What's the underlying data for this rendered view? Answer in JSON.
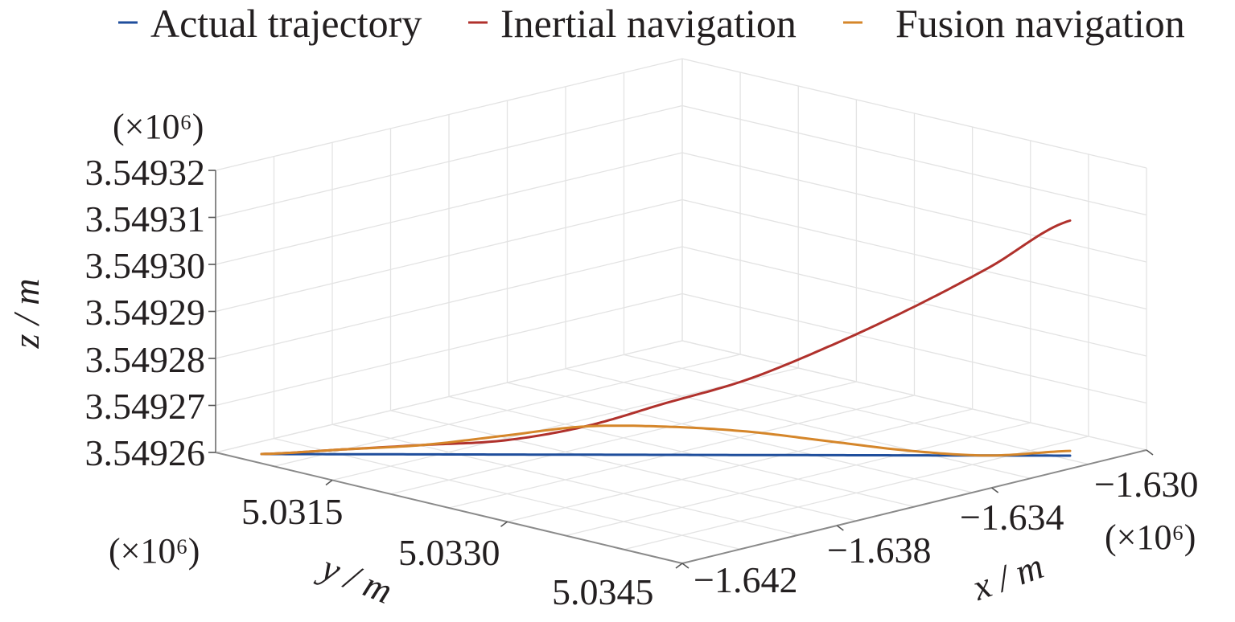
{
  "chart_data": {
    "type": "line",
    "projection": "3d",
    "title": "",
    "legend": {
      "placement": "top",
      "entries": [
        "Actual trajectory",
        "Inertial navigation",
        "Fusion navigation"
      ]
    },
    "axes": {
      "x": {
        "label": "x / m",
        "scale_label": "(×10⁶)",
        "range": [
          -1.642,
          -1.63
        ],
        "ticks": [
          -1.642,
          -1.638,
          -1.634,
          -1.63
        ],
        "tick_labels": [
          "−1.642",
          "−1.638",
          "−1.634",
          "−1.630"
        ]
      },
      "y": {
        "label": "y / m",
        "scale_label": "(×10⁶)",
        "range": [
          5.0305,
          5.0345
        ],
        "ticks": [
          5.0315,
          5.033,
          5.0345
        ],
        "tick_labels": [
          "5.0315",
          "5.0330",
          "5.0345"
        ]
      },
      "z": {
        "label": "z / m",
        "scale_label": "(×10⁶)",
        "range": [
          3.54926,
          3.54932
        ],
        "ticks": [
          3.54926,
          3.54927,
          3.54928,
          3.54929,
          3.5493,
          3.54931,
          3.54932
        ],
        "tick_labels": [
          "3.54926",
          "3.54927",
          "3.54928",
          "3.54929",
          "3.54930",
          "3.54931",
          "3.54932"
        ]
      }
    },
    "grid": true,
    "series": [
      {
        "name": "Actual trajectory",
        "color": "#1f4e9c",
        "t": [
          0,
          0.1,
          0.2,
          0.3,
          0.4,
          0.5,
          0.6,
          0.7,
          0.8,
          0.9,
          1
        ],
        "z": [
          3.54926,
          3.54926,
          3.54926,
          3.54926,
          3.54926,
          3.54926,
          3.54926,
          3.54926,
          3.54926,
          3.54926,
          3.54926
        ]
      },
      {
        "name": "Inertial navigation",
        "color": "#b0312c",
        "t": [
          0,
          0.1,
          0.2,
          0.3,
          0.4,
          0.5,
          0.6,
          0.7,
          0.8,
          0.9,
          1
        ],
        "z": [
          3.54926,
          3.549261,
          3.549262,
          3.549263,
          3.549266,
          3.549271,
          3.549276,
          3.549283,
          3.549291,
          3.5493,
          3.54931
        ]
      },
      {
        "name": "Fusion navigation",
        "color": "#d5862a",
        "t": [
          0,
          0.1,
          0.2,
          0.3,
          0.4,
          0.5,
          0.6,
          0.7,
          0.8,
          0.9,
          1
        ],
        "z": [
          3.54926,
          3.549261,
          3.549262,
          3.549264,
          3.549266,
          3.549266,
          3.549265,
          3.549263,
          3.549261,
          3.54926,
          3.549261
        ]
      }
    ]
  }
}
